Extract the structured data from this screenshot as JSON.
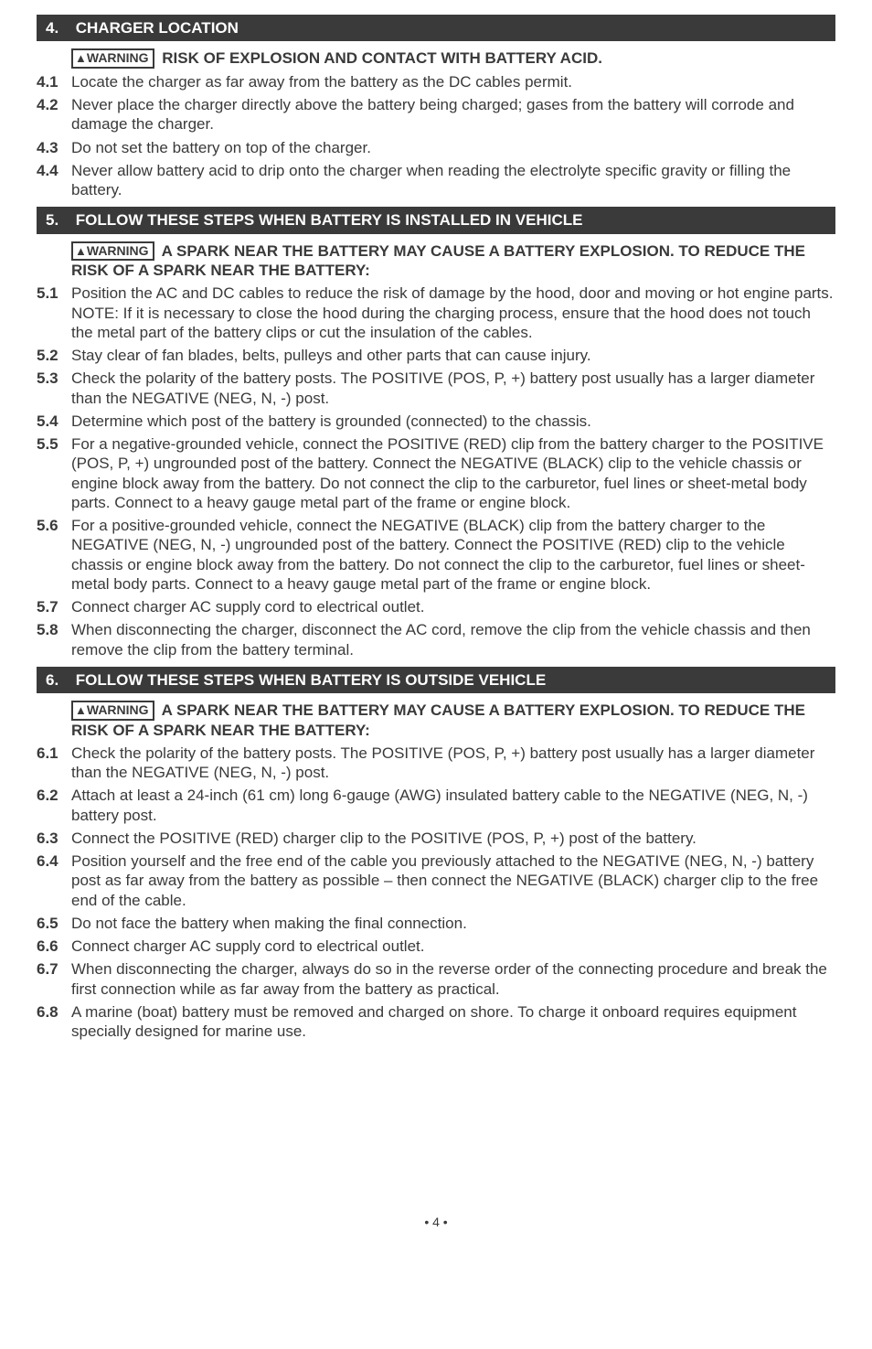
{
  "sections": {
    "s4": {
      "header_num": "4.",
      "header_title": "CHARGER LOCATION",
      "warning_label": "WARNING",
      "warning_text": "RISK OF EXPLOSION AND CONTACT WITH BATTERY ACID.",
      "items": [
        {
          "num": "4.1",
          "txt": "Locate the charger as far away from the battery as the DC cables permit."
        },
        {
          "num": "4.2",
          "txt": "Never place the charger directly above the battery being charged; gases from the battery will corrode and damage the charger."
        },
        {
          "num": "4.3",
          "txt": "Do not set the battery on top of the charger."
        },
        {
          "num": "4.4",
          "txt": "Never allow battery acid to drip onto the charger when reading the electrolyte specific gravity or filling the battery."
        }
      ]
    },
    "s5": {
      "header_num": "5.",
      "header_title": "FOLLOW THESE STEPS WHEN BATTERY IS INSTALLED IN VEHICLE",
      "warning_label": "WARNING",
      "warning_text": "A SPARK NEAR THE BATTERY MAY CAUSE A BATTERY EXPLOSION. TO REDUCE THE RISK OF A SPARK NEAR THE BATTERY:",
      "items": [
        {
          "num": "5.1",
          "txt": "Position the AC and DC cables to reduce the risk of damage by the hood, door and moving or hot engine parts. NOTE: If it is necessary to close the hood during the charging process, ensure that the hood does not touch the metal part of the battery clips or cut the insulation of the cables."
        },
        {
          "num": "5.2",
          "txt": "Stay clear of fan blades, belts, pulleys and other parts that can cause injury."
        },
        {
          "num": "5.3",
          "txt": "Check the polarity of the battery posts. The POSITIVE (POS, P, +) battery post usually has a larger diameter than the NEGATIVE (NEG, N, -) post."
        },
        {
          "num": "5.4",
          "txt": "Determine which post of the battery is grounded (connected) to the chassis."
        },
        {
          "num": "5.5",
          "txt": "For a negative-grounded vehicle, connect the POSITIVE (RED) clip from the battery charger to the POSITIVE (POS, P, +) ungrounded post of the battery. Connect the NEGATIVE (BLACK) clip to the vehicle chassis or engine block away from the battery. Do not connect the clip to the carburetor, fuel lines or sheet-metal body parts. Connect to a heavy gauge metal part of the frame or engine block."
        },
        {
          "num": "5.6",
          "txt": "For a positive-grounded vehicle, connect the NEGATIVE (BLACK) clip from the battery charger to the NEGATIVE (NEG, N, -) ungrounded post of the battery. Connect the POSITIVE (RED) clip to the vehicle chassis or engine block away from the battery. Do not connect the clip to the carburetor, fuel lines or sheet-metal body parts. Connect to a heavy gauge metal part of the frame or engine block."
        },
        {
          "num": "5.7",
          "txt": "Connect charger AC supply cord to electrical outlet."
        },
        {
          "num": "5.8",
          "txt": "When disconnecting the charger, disconnect the AC cord, remove the clip from the vehicle chassis and then remove the clip from the battery terminal."
        }
      ]
    },
    "s6": {
      "header_num": "6.",
      "header_title": "FOLLOW THESE STEPS WHEN BATTERY IS OUTSIDE VEHICLE",
      "warning_label": "WARNING",
      "warning_text": "A SPARK NEAR THE BATTERY MAY CAUSE A BATTERY EXPLOSION. TO REDUCE THE RISK OF A SPARK NEAR THE BATTERY:",
      "items": [
        {
          "num": "6.1",
          "txt": "Check the polarity of the battery posts. The POSITIVE (POS, P, +) battery post usually has a larger diameter than the NEGATIVE (NEG, N, -) post."
        },
        {
          "num": "6.2",
          "txt": "Attach at least a 24-inch (61 cm) long 6-gauge (AWG) insulated battery cable to the NEGATIVE (NEG, N, -) battery post."
        },
        {
          "num": "6.3",
          "txt": "Connect the POSITIVE (RED) charger clip to the POSITIVE (POS, P, +) post of the battery."
        },
        {
          "num": "6.4",
          "txt": "Position yourself and the free end of the cable you previously attached to the NEGATIVE (NEG, N, -) battery post as far away from the battery as possible – then connect the NEGATIVE (BLACK) charger clip to the free end of the cable."
        },
        {
          "num": "6.5",
          "txt": "Do not face the battery when making the final connection."
        },
        {
          "num": "6.6",
          "txt": "Connect charger AC supply cord to electrical outlet."
        },
        {
          "num": "6.7",
          "txt": "When disconnecting the charger, always do so in the reverse order of the connecting procedure and break the first connection while as far away from the battery as practical."
        },
        {
          "num": "6.8",
          "txt": "A marine (boat) battery must be removed and charged on shore. To charge it onboard requires equipment specially designed for marine use."
        }
      ]
    }
  },
  "page_number": "• 4 •"
}
